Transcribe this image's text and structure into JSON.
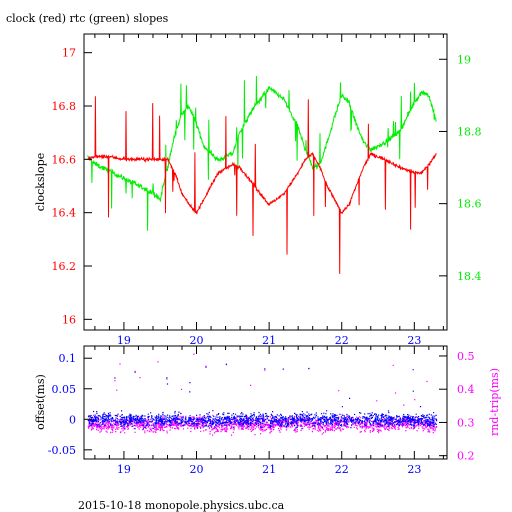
{
  "title": "clock (red) rtc (green) slopes",
  "footer": "2015-10-18  monopole.physics.ubc.ca",
  "colors": {
    "clock": "#ff0000",
    "rtc": "#00ee00",
    "offset": "#0000ff",
    "rndtrip": "#ff00ff",
    "axis": "#000000"
  },
  "chart_data": [
    {
      "type": "line",
      "title": "clock (red) rtc (green) slopes",
      "xlabel": "",
      "ylabel": "clockslope",
      "y2label": "",
      "xlim": [
        18.45,
        23.45
      ],
      "ylim": [
        15.96,
        17.07
      ],
      "y2lim": [
        18.25,
        19.07
      ],
      "xticks": [
        "19",
        "20",
        "21",
        "22",
        "23"
      ],
      "yticks": [
        "16",
        "16.2",
        "16.4",
        "16.6",
        "16.8",
        "17"
      ],
      "y2ticks": [
        "18.4",
        "18.6",
        "18.8",
        "19"
      ],
      "series": [
        {
          "name": "clock",
          "axis": "left",
          "x": [
            18.5,
            18.6,
            18.8,
            19.0,
            19.2,
            19.4,
            19.5,
            19.6,
            19.7,
            19.8,
            19.9,
            20.0,
            20.1,
            20.3,
            20.5,
            20.6,
            20.8,
            21.0,
            21.2,
            21.4,
            21.5,
            21.6,
            21.7,
            21.8,
            21.9,
            22.0,
            22.1,
            22.2,
            22.3,
            22.4,
            22.6,
            22.8,
            23.0,
            23.1,
            23.2,
            23.3
          ],
          "y": [
            16.6,
            16.61,
            16.61,
            16.6,
            16.6,
            16.6,
            16.6,
            16.6,
            16.55,
            16.47,
            16.43,
            16.4,
            16.45,
            16.55,
            16.58,
            16.57,
            16.5,
            16.43,
            16.47,
            16.55,
            16.6,
            16.62,
            16.57,
            16.5,
            16.45,
            16.4,
            16.43,
            16.5,
            16.57,
            16.62,
            16.6,
            16.57,
            16.55,
            16.55,
            16.58,
            16.62
          ]
        },
        {
          "name": "rtc",
          "axis": "right",
          "x": [
            18.5,
            18.6,
            18.8,
            19.0,
            19.2,
            19.4,
            19.5,
            19.6,
            19.7,
            19.8,
            19.9,
            20.0,
            20.1,
            20.3,
            20.5,
            20.6,
            20.8,
            21.0,
            21.2,
            21.4,
            21.5,
            21.6,
            21.7,
            21.8,
            21.9,
            22.0,
            22.1,
            22.2,
            22.3,
            22.4,
            22.6,
            22.8,
            23.0,
            23.1,
            23.2,
            23.3
          ],
          "y": [
            18.73,
            18.71,
            18.69,
            18.67,
            18.65,
            18.63,
            18.61,
            18.7,
            18.79,
            18.85,
            18.87,
            18.82,
            18.76,
            18.72,
            18.74,
            18.8,
            18.87,
            18.92,
            18.89,
            18.81,
            18.75,
            18.7,
            18.71,
            18.77,
            18.84,
            18.9,
            18.88,
            18.82,
            18.77,
            18.75,
            18.77,
            18.8,
            18.88,
            18.91,
            18.9,
            18.83
          ]
        }
      ]
    },
    {
      "type": "scatter",
      "xlabel": "",
      "ylabel": "offset(ms)",
      "y2label": "rnd-trip(ms)",
      "xlim": [
        18.45,
        23.45
      ],
      "ylim": [
        -0.065,
        0.12
      ],
      "y2lim": [
        0.19,
        0.53
      ],
      "xticks": [
        "19",
        "20",
        "21",
        "22",
        "23"
      ],
      "yticks": [
        "-0.05",
        "0",
        "0.05",
        "0.1"
      ],
      "y2ticks": [
        "0.2",
        "0.3",
        "0.4",
        "0.5"
      ],
      "series": [
        {
          "name": "offset",
          "axis": "left",
          "x": [
            18.5,
            18.8,
            19.1,
            19.4,
            19.7,
            20.0,
            20.3,
            20.6,
            20.9,
            21.2,
            21.5,
            21.8,
            22.1,
            22.4,
            22.7,
            23.0,
            23.3
          ],
          "y": [
            0.0,
            0.002,
            -0.001,
            0.0,
            0.001,
            -0.002,
            0.0,
            0.001,
            0.0,
            -0.001,
            0.002,
            0.0,
            -0.001,
            0.001,
            0.0,
            -0.001,
            0.0
          ]
        },
        {
          "name": "rnd-trip",
          "axis": "right",
          "x": [
            18.5,
            18.8,
            19.1,
            19.4,
            19.7,
            20.0,
            20.3,
            20.6,
            20.9,
            21.2,
            21.5,
            21.8,
            22.1,
            22.4,
            22.7,
            23.0,
            23.3
          ],
          "y": [
            0.3,
            0.29,
            0.3,
            0.29,
            0.3,
            0.3,
            0.29,
            0.3,
            0.29,
            0.3,
            0.3,
            0.29,
            0.3,
            0.29,
            0.3,
            0.3,
            0.29
          ]
        }
      ]
    }
  ]
}
